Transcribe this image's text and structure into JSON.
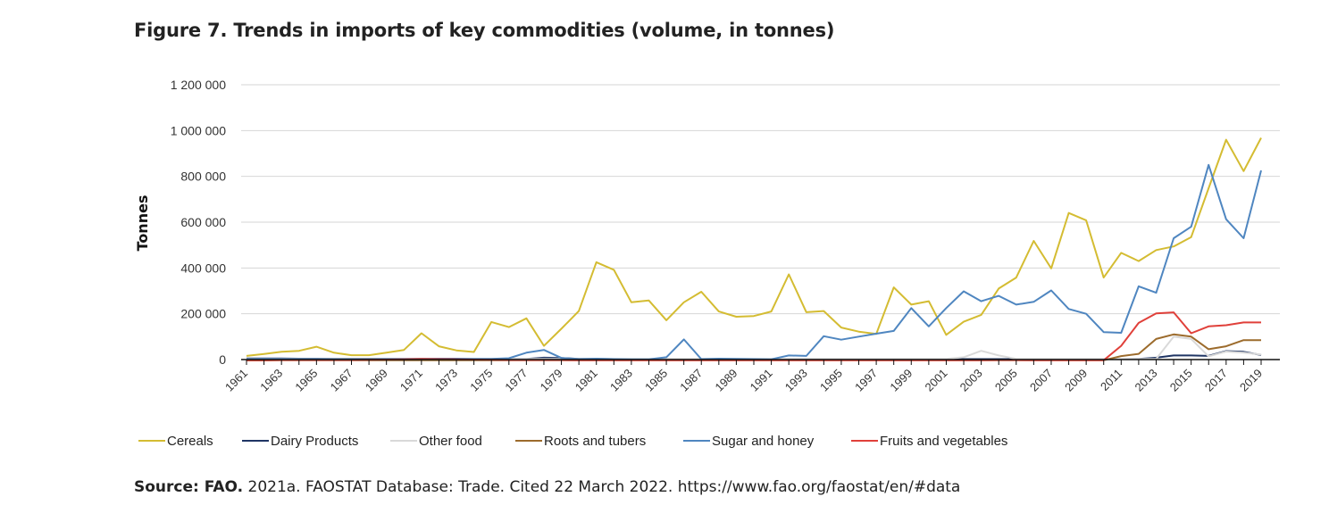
{
  "title": "Figure 7. Trends in imports of key commodities (volume, in tonnes)",
  "source": {
    "label": "Source: FAO.",
    "text": "2021a. FAOSTAT Database: Trade. Cited 22 March 2022. https://www.fao.org/faostat/en/#data"
  },
  "chart_data": {
    "type": "line",
    "title": "Figure 7. Trends in imports of key commodities (volume, in tonnes)",
    "xlabel": "",
    "ylabel": "Tonnes",
    "ylim": [
      -20000,
      1200000
    ],
    "yticks": [
      0,
      200000,
      400000,
      600000,
      800000,
      1000000,
      1200000
    ],
    "ytick_labels": [
      "0",
      "200 000",
      "400 000",
      "600 000",
      "800 000",
      "1 000 000",
      "1 200 000"
    ],
    "grid": "horizontal",
    "legend": "bottom",
    "x": [
      1961,
      1962,
      1963,
      1964,
      1965,
      1966,
      1967,
      1968,
      1969,
      1970,
      1971,
      1972,
      1973,
      1974,
      1975,
      1976,
      1977,
      1978,
      1979,
      1980,
      1981,
      1982,
      1983,
      1984,
      1985,
      1986,
      1987,
      1988,
      1989,
      1990,
      1991,
      1992,
      1993,
      1994,
      1995,
      1996,
      1997,
      1998,
      1999,
      2000,
      2001,
      2002,
      2003,
      2004,
      2005,
      2006,
      2007,
      2008,
      2009,
      2010,
      2011,
      2012,
      2013,
      2014,
      2015,
      2016,
      2017,
      2018,
      2019
    ],
    "xtick_labels": [
      "1961",
      "1963",
      "1965",
      "1967",
      "1969",
      "1971",
      "1973",
      "1975",
      "1977",
      "1979",
      "1981",
      "1983",
      "1985",
      "1987",
      "1989",
      "1991",
      "1993",
      "1995",
      "1997",
      "1999",
      "2001",
      "2003",
      "2005",
      "2007",
      "2009",
      "2011",
      "2013",
      "2015",
      "2017",
      "2019"
    ],
    "series": [
      {
        "name": "Cereals",
        "color": "#d4bc32",
        "values": [
          16000,
          24000,
          34000,
          38000,
          56000,
          30000,
          19000,
          19000,
          30000,
          42000,
          115000,
          58000,
          40000,
          33000,
          164000,
          142000,
          180000,
          60000,
          135000,
          212000,
          425000,
          392000,
          250000,
          258000,
          172000,
          250000,
          296000,
          210000,
          187000,
          190000,
          210000,
          372000,
          207000,
          212000,
          140000,
          122000,
          112000,
          315000,
          240000,
          255000,
          108000,
          165000,
          195000,
          310000,
          358000,
          518000,
          398000,
          640000,
          608000,
          358000,
          466000,
          430000,
          478000,
          494000,
          535000,
          748000,
          960000,
          823000,
          968000
        ]
      },
      {
        "name": "Dairy Products",
        "color": "#1f3564",
        "values": [
          5000,
          5000,
          5000,
          4000,
          4000,
          4000,
          4000,
          4000,
          3000,
          3000,
          3000,
          2000,
          2000,
          2000,
          2000,
          3000,
          3000,
          8000,
          7000,
          3000,
          3000,
          2000,
          2000,
          2000,
          2000,
          2000,
          2000,
          2000,
          2000,
          1000,
          1000,
          1000,
          1000,
          1000,
          1000,
          1000,
          1000,
          2000,
          2000,
          2000,
          2000,
          2000,
          2000,
          2000,
          2000,
          2000,
          2000,
          2000,
          2000,
          2000,
          2000,
          3000,
          8000,
          18000,
          18000,
          16000,
          37000,
          34000,
          20000
        ]
      },
      {
        "name": "Other food",
        "color": "#d9d9d9",
        "values": [
          3000,
          3000,
          3000,
          3000,
          3000,
          3000,
          3000,
          3000,
          3000,
          3000,
          3000,
          3000,
          3000,
          3000,
          3000,
          3000,
          3000,
          3000,
          3000,
          3000,
          3000,
          3000,
          3000,
          3000,
          3000,
          3000,
          3000,
          3000,
          3000,
          3000,
          3000,
          3000,
          3000,
          3000,
          3000,
          3000,
          3000,
          3000,
          3000,
          3000,
          3000,
          10000,
          38000,
          18000,
          3000,
          3000,
          3000,
          3000,
          3000,
          3000,
          3000,
          3000,
          3000,
          100000,
          90000,
          14000,
          35000,
          30000,
          22000
        ]
      },
      {
        "name": "Roots and tubers",
        "color": "#9c6b2c",
        "values": [
          -4000,
          -4000,
          -3000,
          -3000,
          -3000,
          -3000,
          -3000,
          -3000,
          -3000,
          -3000,
          -3000,
          -3000,
          -3000,
          -3000,
          -3000,
          -3000,
          -3000,
          -3000,
          -3000,
          -3000,
          -3000,
          -3000,
          -3000,
          -3000,
          -3000,
          -3000,
          -3000,
          -3000,
          -3000,
          -3000,
          -3000,
          -3000,
          -3000,
          -3000,
          -3000,
          -3000,
          -3000,
          -3000,
          -3000,
          -3000,
          -3000,
          -3000,
          -3000,
          -3000,
          -3000,
          -3000,
          -3000,
          -3000,
          -3000,
          -3000,
          15000,
          25000,
          90000,
          110000,
          100000,
          45000,
          58000,
          85000,
          85000
        ]
      },
      {
        "name": "Sugar and honey",
        "color": "#4f86c0",
        "values": [
          2000,
          3000,
          2000,
          2000,
          2000,
          1000,
          1000,
          1000,
          2000,
          2000,
          3000,
          4000,
          4000,
          3000,
          3000,
          6000,
          30000,
          42000,
          7000,
          2000,
          4000,
          2000,
          1000,
          1000,
          10000,
          88000,
          2000,
          4000,
          3000,
          2000,
          1000,
          18000,
          16000,
          102000,
          87000,
          100000,
          113000,
          125000,
          225000,
          145000,
          225000,
          298000,
          255000,
          278000,
          240000,
          252000,
          302000,
          221000,
          200000,
          120000,
          117000,
          320000,
          292000,
          530000,
          580000,
          850000,
          613000,
          530000,
          826000
        ]
      },
      {
        "name": "Fruits and vegetables",
        "color": "#e0403a",
        "values": [
          -3000,
          -3000,
          -2000,
          -2000,
          -2000,
          -2000,
          -2000,
          -1000,
          0,
          1000,
          3000,
          2000,
          1000,
          0,
          -1000,
          -2000,
          -2000,
          -2000,
          -2000,
          -3000,
          -3000,
          -3000,
          -3000,
          -3000,
          -3000,
          -3000,
          -3000,
          -3000,
          -3000,
          -3000,
          -3000,
          -3000,
          -3000,
          -3000,
          -3000,
          -3000,
          -3000,
          -3000,
          -3000,
          -3000,
          -3000,
          -3000,
          -3000,
          -2000,
          -2000,
          -3000,
          -3000,
          -3000,
          -3000,
          -3000,
          60000,
          160000,
          202000,
          206000,
          115000,
          145000,
          150000,
          162000,
          162000
        ]
      }
    ]
  }
}
